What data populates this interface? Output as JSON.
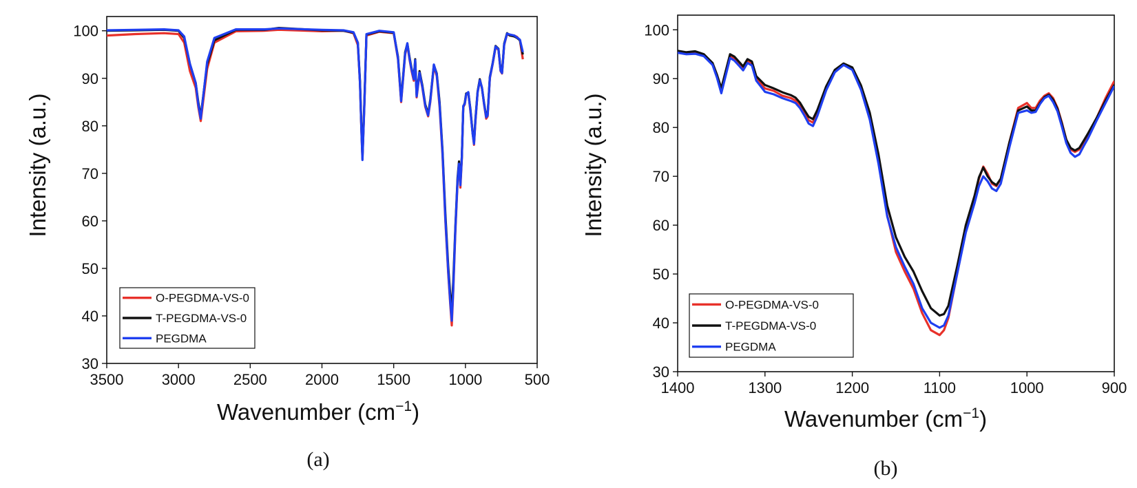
{
  "chart_data": [
    {
      "type": "line",
      "panel_label": "(a)",
      "xlabel": "Wavenumber (cm",
      "xlabel_sup": "−1",
      "xlabel_close": ")",
      "ylabel": "Intensity (a.u.)",
      "xlim": [
        3500,
        500
      ],
      "ylim": [
        30,
        103
      ],
      "xticks": [
        3500,
        3000,
        2500,
        2000,
        1500,
        1000,
        500
      ],
      "yticks": [
        30,
        40,
        50,
        60,
        70,
        80,
        90,
        100
      ],
      "legend_position": "bottom-left",
      "series": [
        {
          "name": "O-PEGDMA-VS-0",
          "color": "#e8312a",
          "x": [
            3500,
            3300,
            3100,
            3000,
            2960,
            2920,
            2880,
            2862,
            2845,
            2800,
            2750,
            2600,
            2400,
            2300,
            2000,
            1850,
            1780,
            1750,
            1735,
            1725,
            1718,
            1705,
            1690,
            1600,
            1500,
            1470,
            1455,
            1448,
            1420,
            1405,
            1390,
            1375,
            1360,
            1350,
            1340,
            1320,
            1300,
            1280,
            1260,
            1245,
            1220,
            1200,
            1180,
            1160,
            1140,
            1120,
            1105,
            1095,
            1085,
            1070,
            1055,
            1045,
            1035,
            1025,
            1015,
            1005,
            995,
            980,
            965,
            950,
            940,
            930,
            915,
            900,
            885,
            870,
            855,
            845,
            830,
            810,
            790,
            770,
            755,
            745,
            730,
            710,
            690,
            660,
            640,
            620,
            600
          ],
          "y": [
            99.0,
            99.3,
            99.5,
            99.3,
            97.5,
            91.5,
            88.0,
            84.0,
            81.0,
            92.0,
            97.5,
            99.9,
            100.0,
            100.2,
            99.9,
            100.0,
            99.5,
            97.0,
            89.0,
            79.0,
            73.0,
            84.0,
            99.0,
            99.8,
            99.5,
            94.0,
            88.0,
            85.0,
            95.0,
            97.0,
            94.0,
            91.5,
            89.5,
            93.5,
            86.0,
            91.0,
            88.0,
            84.0,
            82.0,
            85.0,
            92.5,
            90.5,
            84.0,
            74.0,
            60.0,
            49.0,
            42.0,
            38.0,
            45.0,
            58.0,
            68.0,
            72.0,
            67.0,
            73.0,
            84.0,
            84.5,
            86.5,
            87.0,
            83.0,
            78.5,
            76.0,
            81.0,
            87.0,
            89.5,
            88.0,
            84.5,
            81.5,
            82.0,
            90.0,
            93.0,
            96.5,
            96.0,
            91.5,
            91.0,
            97.0,
            99.3,
            99.0,
            99.0,
            98.7,
            98.0,
            94.0
          ]
        },
        {
          "name": "T-PEGDMA-VS-0",
          "color": "#111111",
          "x": [
            3500,
            3300,
            3100,
            3000,
            2960,
            2920,
            2880,
            2862,
            2845,
            2800,
            2750,
            2600,
            2400,
            2300,
            2000,
            1850,
            1780,
            1750,
            1735,
            1725,
            1718,
            1705,
            1690,
            1600,
            1500,
            1470,
            1455,
            1448,
            1420,
            1405,
            1390,
            1375,
            1360,
            1350,
            1340,
            1320,
            1300,
            1280,
            1260,
            1245,
            1220,
            1200,
            1180,
            1160,
            1140,
            1120,
            1105,
            1095,
            1085,
            1070,
            1055,
            1045,
            1035,
            1025,
            1015,
            1005,
            995,
            980,
            965,
            950,
            940,
            930,
            915,
            900,
            885,
            870,
            855,
            845,
            830,
            810,
            790,
            770,
            755,
            745,
            730,
            710,
            690,
            660,
            640,
            620,
            600
          ],
          "y": [
            100.0,
            100.1,
            100.2,
            100.0,
            98.5,
            93.0,
            89.0,
            85.0,
            82.0,
            93.0,
            98.0,
            100.2,
            100.2,
            100.6,
            100.1,
            100.0,
            99.6,
            97.5,
            89.5,
            79.5,
            73.5,
            84.5,
            99.2,
            99.9,
            99.6,
            94.5,
            88.5,
            85.5,
            95.5,
            97.3,
            94.5,
            92.0,
            90.0,
            94.0,
            86.5,
            91.5,
            88.5,
            84.5,
            82.5,
            85.5,
            92.8,
            91.0,
            85.0,
            75.0,
            61.5,
            50.5,
            44.0,
            41.5,
            47.0,
            59.0,
            69.0,
            72.5,
            68.0,
            73.5,
            84.0,
            84.8,
            86.8,
            87.0,
            83.5,
            78.5,
            76.5,
            81.5,
            87.2,
            89.8,
            88.0,
            84.8,
            82.0,
            82.5,
            90.3,
            93.2,
            96.8,
            96.2,
            91.8,
            91.3,
            97.3,
            99.5,
            99.0,
            98.8,
            98.5,
            98.0,
            95.0
          ]
        },
        {
          "name": "PEGDMA",
          "color": "#1f3ff0",
          "x": [
            3500,
            3300,
            3100,
            3000,
            2960,
            2920,
            2880,
            2862,
            2845,
            2800,
            2750,
            2600,
            2400,
            2300,
            2000,
            1850,
            1780,
            1750,
            1735,
            1725,
            1718,
            1705,
            1690,
            1600,
            1500,
            1470,
            1455,
            1448,
            1420,
            1405,
            1390,
            1375,
            1360,
            1350,
            1340,
            1320,
            1300,
            1280,
            1260,
            1245,
            1220,
            1200,
            1180,
            1160,
            1140,
            1120,
            1105,
            1095,
            1085,
            1070,
            1055,
            1045,
            1035,
            1025,
            1015,
            1005,
            995,
            980,
            965,
            950,
            940,
            930,
            915,
            900,
            885,
            870,
            855,
            845,
            830,
            810,
            790,
            770,
            755,
            745,
            730,
            710,
            690,
            660,
            640,
            620,
            600
          ],
          "y": [
            100.1,
            100.2,
            100.3,
            100.1,
            98.8,
            93.0,
            89.0,
            84.5,
            81.5,
            93.5,
            98.5,
            100.3,
            100.3,
            100.5,
            100.2,
            100.1,
            99.7,
            97.5,
            89.0,
            79.0,
            72.8,
            84.0,
            99.3,
            100.0,
            99.7,
            94.2,
            88.2,
            85.2,
            95.2,
            97.4,
            94.2,
            91.8,
            89.8,
            93.8,
            86.2,
            91.2,
            88.2,
            84.2,
            82.2,
            85.2,
            92.9,
            90.8,
            84.5,
            74.5,
            60.5,
            49.5,
            42.5,
            39.0,
            45.5,
            58.5,
            68.5,
            72.0,
            67.5,
            73.2,
            84.2,
            84.6,
            86.6,
            87.1,
            83.2,
            78.3,
            76.2,
            81.2,
            87.0,
            89.6,
            88.1,
            84.6,
            81.8,
            82.2,
            90.1,
            93.1,
            96.7,
            96.1,
            91.6,
            91.1,
            97.1,
            99.4,
            99.2,
            99.0,
            98.6,
            98.1,
            95.5
          ]
        }
      ]
    },
    {
      "type": "line",
      "panel_label": "(b)",
      "xlabel": "Wavenumber (cm",
      "xlabel_sup": "−1",
      "xlabel_close": ")",
      "ylabel": "Intensity (a.u.)",
      "xlim": [
        1400,
        900
      ],
      "ylim": [
        30,
        103
      ],
      "xticks": [
        1400,
        1300,
        1200,
        1100,
        1000,
        900
      ],
      "yticks": [
        30,
        40,
        50,
        60,
        70,
        80,
        90,
        100
      ],
      "legend_position": "bottom-left",
      "series": [
        {
          "name": "O-PEGDMA-VS-0",
          "color": "#e8312a",
          "x": [
            1400,
            1390,
            1380,
            1370,
            1360,
            1355,
            1350,
            1345,
            1340,
            1335,
            1330,
            1325,
            1320,
            1315,
            1310,
            1300,
            1290,
            1280,
            1270,
            1265,
            1260,
            1255,
            1250,
            1245,
            1240,
            1230,
            1220,
            1210,
            1200,
            1190,
            1180,
            1170,
            1160,
            1150,
            1140,
            1130,
            1120,
            1110,
            1100,
            1095,
            1090,
            1080,
            1070,
            1060,
            1055,
            1050,
            1045,
            1040,
            1035,
            1030,
            1020,
            1010,
            1000,
            995,
            990,
            985,
            980,
            975,
            970,
            965,
            960,
            955,
            950,
            945,
            940,
            935,
            930,
            920,
            910,
            900
          ],
          "y": [
            95.5,
            95.2,
            95.3,
            94.8,
            93.0,
            90.5,
            87.5,
            91.0,
            94.5,
            94.0,
            93.0,
            92.0,
            93.5,
            93.0,
            90.0,
            88.0,
            87.5,
            86.5,
            86.0,
            85.5,
            84.5,
            83.0,
            81.5,
            81.0,
            83.0,
            88.0,
            91.5,
            93.0,
            92.0,
            88.0,
            82.0,
            73.0,
            62.0,
            54.5,
            50.5,
            47.0,
            42.0,
            38.5,
            37.5,
            38.5,
            41.0,
            50.0,
            59.0,
            65.5,
            69.5,
            72.0,
            70.5,
            68.5,
            68.0,
            69.5,
            77.0,
            84.0,
            85.0,
            84.0,
            84.0,
            85.5,
            86.5,
            87.0,
            86.0,
            84.0,
            81.0,
            77.5,
            75.5,
            75.0,
            75.5,
            77.0,
            78.5,
            82.0,
            86.0,
            89.5
          ]
        },
        {
          "name": "T-PEGDMA-VS-0",
          "color": "#111111",
          "x": [
            1400,
            1390,
            1380,
            1370,
            1360,
            1355,
            1350,
            1345,
            1340,
            1335,
            1330,
            1325,
            1320,
            1315,
            1310,
            1300,
            1290,
            1280,
            1270,
            1265,
            1260,
            1255,
            1250,
            1245,
            1240,
            1230,
            1220,
            1210,
            1200,
            1190,
            1180,
            1170,
            1160,
            1150,
            1140,
            1130,
            1120,
            1110,
            1100,
            1095,
            1090,
            1080,
            1070,
            1060,
            1055,
            1050,
            1045,
            1040,
            1035,
            1030,
            1020,
            1010,
            1000,
            995,
            990,
            985,
            980,
            975,
            970,
            965,
            960,
            955,
            950,
            945,
            940,
            935,
            930,
            920,
            910,
            900
          ],
          "y": [
            95.7,
            95.4,
            95.6,
            95.0,
            93.2,
            90.8,
            88.0,
            91.5,
            95.0,
            94.5,
            93.5,
            92.5,
            94.0,
            93.5,
            90.5,
            88.7,
            88.0,
            87.2,
            86.6,
            86.1,
            85.1,
            83.6,
            82.2,
            81.7,
            83.6,
            88.4,
            91.8,
            93.1,
            92.3,
            88.6,
            83.0,
            74.5,
            64.0,
            57.5,
            53.5,
            50.5,
            46.5,
            43.0,
            41.5,
            41.8,
            43.5,
            51.5,
            60.0,
            66.0,
            69.8,
            71.8,
            70.0,
            68.8,
            68.2,
            69.5,
            77.0,
            83.5,
            84.3,
            83.5,
            83.5,
            85.0,
            86.2,
            86.7,
            85.7,
            83.8,
            80.8,
            77.5,
            75.8,
            75.3,
            75.8,
            77.3,
            78.8,
            82.0,
            85.5,
            88.7
          ]
        },
        {
          "name": "PEGDMA",
          "color": "#1f3ff0",
          "x": [
            1400,
            1390,
            1380,
            1370,
            1360,
            1355,
            1350,
            1345,
            1340,
            1335,
            1330,
            1325,
            1320,
            1315,
            1310,
            1300,
            1290,
            1280,
            1270,
            1265,
            1260,
            1255,
            1250,
            1245,
            1240,
            1230,
            1220,
            1210,
            1200,
            1190,
            1180,
            1170,
            1160,
            1150,
            1140,
            1130,
            1120,
            1110,
            1100,
            1095,
            1090,
            1080,
            1070,
            1060,
            1055,
            1050,
            1045,
            1040,
            1035,
            1030,
            1020,
            1010,
            1000,
            995,
            990,
            985,
            980,
            975,
            970,
            965,
            960,
            955,
            950,
            945,
            940,
            935,
            930,
            920,
            910,
            900
          ],
          "y": [
            95.3,
            95.0,
            95.1,
            94.6,
            92.8,
            90.2,
            87.0,
            90.6,
            94.2,
            93.7,
            92.7,
            91.7,
            93.2,
            92.7,
            89.6,
            87.3,
            86.8,
            86.0,
            85.4,
            85.0,
            84.0,
            82.5,
            80.8,
            80.3,
            82.4,
            87.6,
            91.3,
            92.8,
            91.8,
            87.7,
            81.6,
            72.6,
            61.8,
            55.5,
            51.5,
            48.0,
            43.0,
            40.0,
            39.0,
            39.5,
            41.5,
            50.0,
            58.5,
            64.5,
            68.0,
            70.0,
            69.0,
            67.5,
            67.0,
            68.5,
            76.0,
            83.0,
            83.5,
            83.0,
            83.2,
            84.8,
            86.0,
            86.5,
            85.2,
            83.3,
            80.2,
            76.8,
            74.8,
            74.0,
            74.5,
            76.2,
            77.8,
            81.5,
            85.0,
            88.5
          ]
        }
      ]
    }
  ]
}
